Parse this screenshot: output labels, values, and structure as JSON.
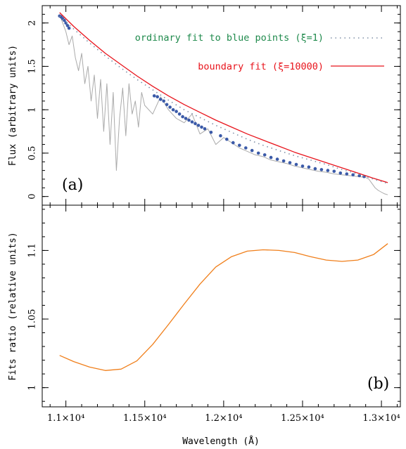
{
  "chart_data": [
    {
      "panel_label": "(a)",
      "type": "line",
      "xlabel": "",
      "ylabel": "Flux (arbitrary units)",
      "xlim": [
        10850,
        13120
      ],
      "ylim": [
        -0.1,
        2.2
      ],
      "y_ticks": [
        0,
        0.5,
        1,
        1.5,
        2
      ],
      "y_tick_labels": [
        "0",
        "0.5",
        "1",
        "1.5",
        "2"
      ],
      "legend": [
        {
          "label": "ordinary fit to blue points (ξ=1)",
          "style": "dotted",
          "color": "#7f8fa6",
          "text_color": "#1f8a4c"
        },
        {
          "label": "boundary fit (ξ=10000)",
          "style": "solid",
          "color": "#e8141c",
          "text_color": "#e8141c"
        }
      ],
      "series": [
        {
          "kind": "spectrum",
          "color": "#aaaaaa",
          "x": [
            10960,
            10980,
            11000,
            11020,
            11040,
            11060,
            11080,
            11100,
            11120,
            11140,
            11160,
            11180,
            11200,
            11220,
            11240,
            11260,
            11280,
            11300,
            11320,
            11340,
            11360,
            11380,
            11400,
            11420,
            11440,
            11460,
            11480,
            11500,
            11550,
            11600,
            11650,
            11700,
            11750,
            11800,
            11850,
            11900,
            11950,
            12000,
            12050,
            12100,
            12150,
            12200,
            12250,
            12300,
            12350,
            12400,
            12450,
            12500,
            12550,
            12600,
            12650,
            12700,
            12750,
            12800,
            12850,
            12900,
            12920,
            12940,
            12960,
            12980,
            13000,
            13020,
            13040
          ],
          "y": [
            2.1,
            2.0,
            1.9,
            1.75,
            1.85,
            1.6,
            1.45,
            1.65,
            1.3,
            1.5,
            1.1,
            1.4,
            0.9,
            1.35,
            0.75,
            1.3,
            0.6,
            1.2,
            0.3,
            0.9,
            1.25,
            0.7,
            1.3,
            0.95,
            1.1,
            0.8,
            1.2,
            1.05,
            0.95,
            1.15,
            1.0,
            0.9,
            0.85,
            0.95,
            0.72,
            0.78,
            0.6,
            0.68,
            0.62,
            0.56,
            0.52,
            0.48,
            0.46,
            0.42,
            0.4,
            0.38,
            0.35,
            0.33,
            0.31,
            0.29,
            0.28,
            0.26,
            0.25,
            0.24,
            0.23,
            0.22,
            0.2,
            0.15,
            0.1,
            0.07,
            0.05,
            0.03,
            0.02
          ]
        },
        {
          "kind": "blue_points",
          "color": "#3b5aa8",
          "x": [
            10960,
            10970,
            10980,
            10990,
            11000,
            11010,
            11020,
            11560,
            11580,
            11600,
            11620,
            11640,
            11660,
            11680,
            11700,
            11720,
            11740,
            11760,
            11780,
            11800,
            11820,
            11840,
            11860,
            11880,
            11920,
            11980,
            12020,
            12060,
            12100,
            12140,
            12180,
            12220,
            12260,
            12300,
            12340,
            12380,
            12420,
            12460,
            12500,
            12540,
            12580,
            12620,
            12660,
            12700,
            12740,
            12780,
            12820,
            12860,
            12890
          ],
          "y": [
            2.08,
            2.07,
            2.05,
            2.03,
            2.0,
            1.97,
            1.94,
            1.16,
            1.15,
            1.12,
            1.1,
            1.06,
            1.03,
            1.0,
            0.98,
            0.95,
            0.92,
            0.9,
            0.88,
            0.86,
            0.84,
            0.82,
            0.8,
            0.78,
            0.74,
            0.7,
            0.66,
            0.62,
            0.59,
            0.56,
            0.53,
            0.5,
            0.48,
            0.45,
            0.43,
            0.41,
            0.39,
            0.37,
            0.35,
            0.34,
            0.32,
            0.31,
            0.3,
            0.29,
            0.27,
            0.26,
            0.25,
            0.24,
            0.23
          ]
        },
        {
          "kind": "boundary_fit",
          "name": "boundary fit (ξ=10000)",
          "color": "#e8141c",
          "x": [
            10960,
            11050,
            11150,
            11250,
            11350,
            11450,
            11550,
            11650,
            11750,
            11850,
            11950,
            12050,
            12150,
            12250,
            12350,
            12450,
            12550,
            12650,
            12750,
            12850,
            12950,
            13040
          ],
          "y": [
            2.12,
            1.96,
            1.8,
            1.65,
            1.52,
            1.39,
            1.27,
            1.16,
            1.06,
            0.97,
            0.88,
            0.8,
            0.72,
            0.65,
            0.58,
            0.51,
            0.45,
            0.39,
            0.33,
            0.27,
            0.21,
            0.16
          ]
        },
        {
          "kind": "ordinary_fit",
          "name": "ordinary fit to blue points (ξ=1)",
          "color": "#7f8fa6",
          "x": [
            10960,
            11050,
            11150,
            11250,
            11350,
            11450,
            11550,
            11650,
            11750,
            11850,
            11950,
            12050,
            12150,
            12250,
            12350,
            12450,
            12550,
            12650,
            12750,
            12850,
            12950,
            13040
          ],
          "y": [
            2.08,
            1.93,
            1.77,
            1.62,
            1.48,
            1.35,
            1.23,
            1.11,
            1.0,
            0.91,
            0.82,
            0.74,
            0.66,
            0.59,
            0.53,
            0.47,
            0.42,
            0.37,
            0.31,
            0.26,
            0.2,
            0.15
          ]
        }
      ]
    },
    {
      "panel_label": "(b)",
      "type": "line",
      "xlabel": "Wavelength (Å)",
      "ylabel": "Fits ratio (relative units)",
      "xlim": [
        10850,
        13120
      ],
      "ylim": [
        0.986,
        1.133
      ],
      "y_ticks": [
        1,
        1.05,
        1.1
      ],
      "y_tick_labels": [
        "1",
        "1.05",
        "1.1"
      ],
      "x_ticks": [
        11000,
        11500,
        12000,
        12500,
        13000
      ],
      "x_tick_labels": [
        "1.1×10⁴",
        "1.15×10⁴",
        "1.2×10⁴",
        "1.25×10⁴",
        "1.3×10⁴"
      ],
      "series": [
        {
          "kind": "ratio",
          "color": "#f07f1b",
          "x": [
            10960,
            11050,
            11150,
            11250,
            11350,
            11450,
            11550,
            11650,
            11750,
            11850,
            11950,
            12050,
            12150,
            12250,
            12350,
            12450,
            12550,
            12650,
            12750,
            12850,
            12950,
            13040
          ],
          "y": [
            1.0235,
            1.019,
            1.015,
            1.0125,
            1.0135,
            1.0195,
            1.0315,
            1.046,
            1.061,
            1.0755,
            1.088,
            1.0955,
            1.0995,
            1.1005,
            1.1,
            1.0985,
            1.0955,
            1.093,
            1.092,
            1.093,
            1.097,
            1.105
          ]
        }
      ]
    }
  ]
}
